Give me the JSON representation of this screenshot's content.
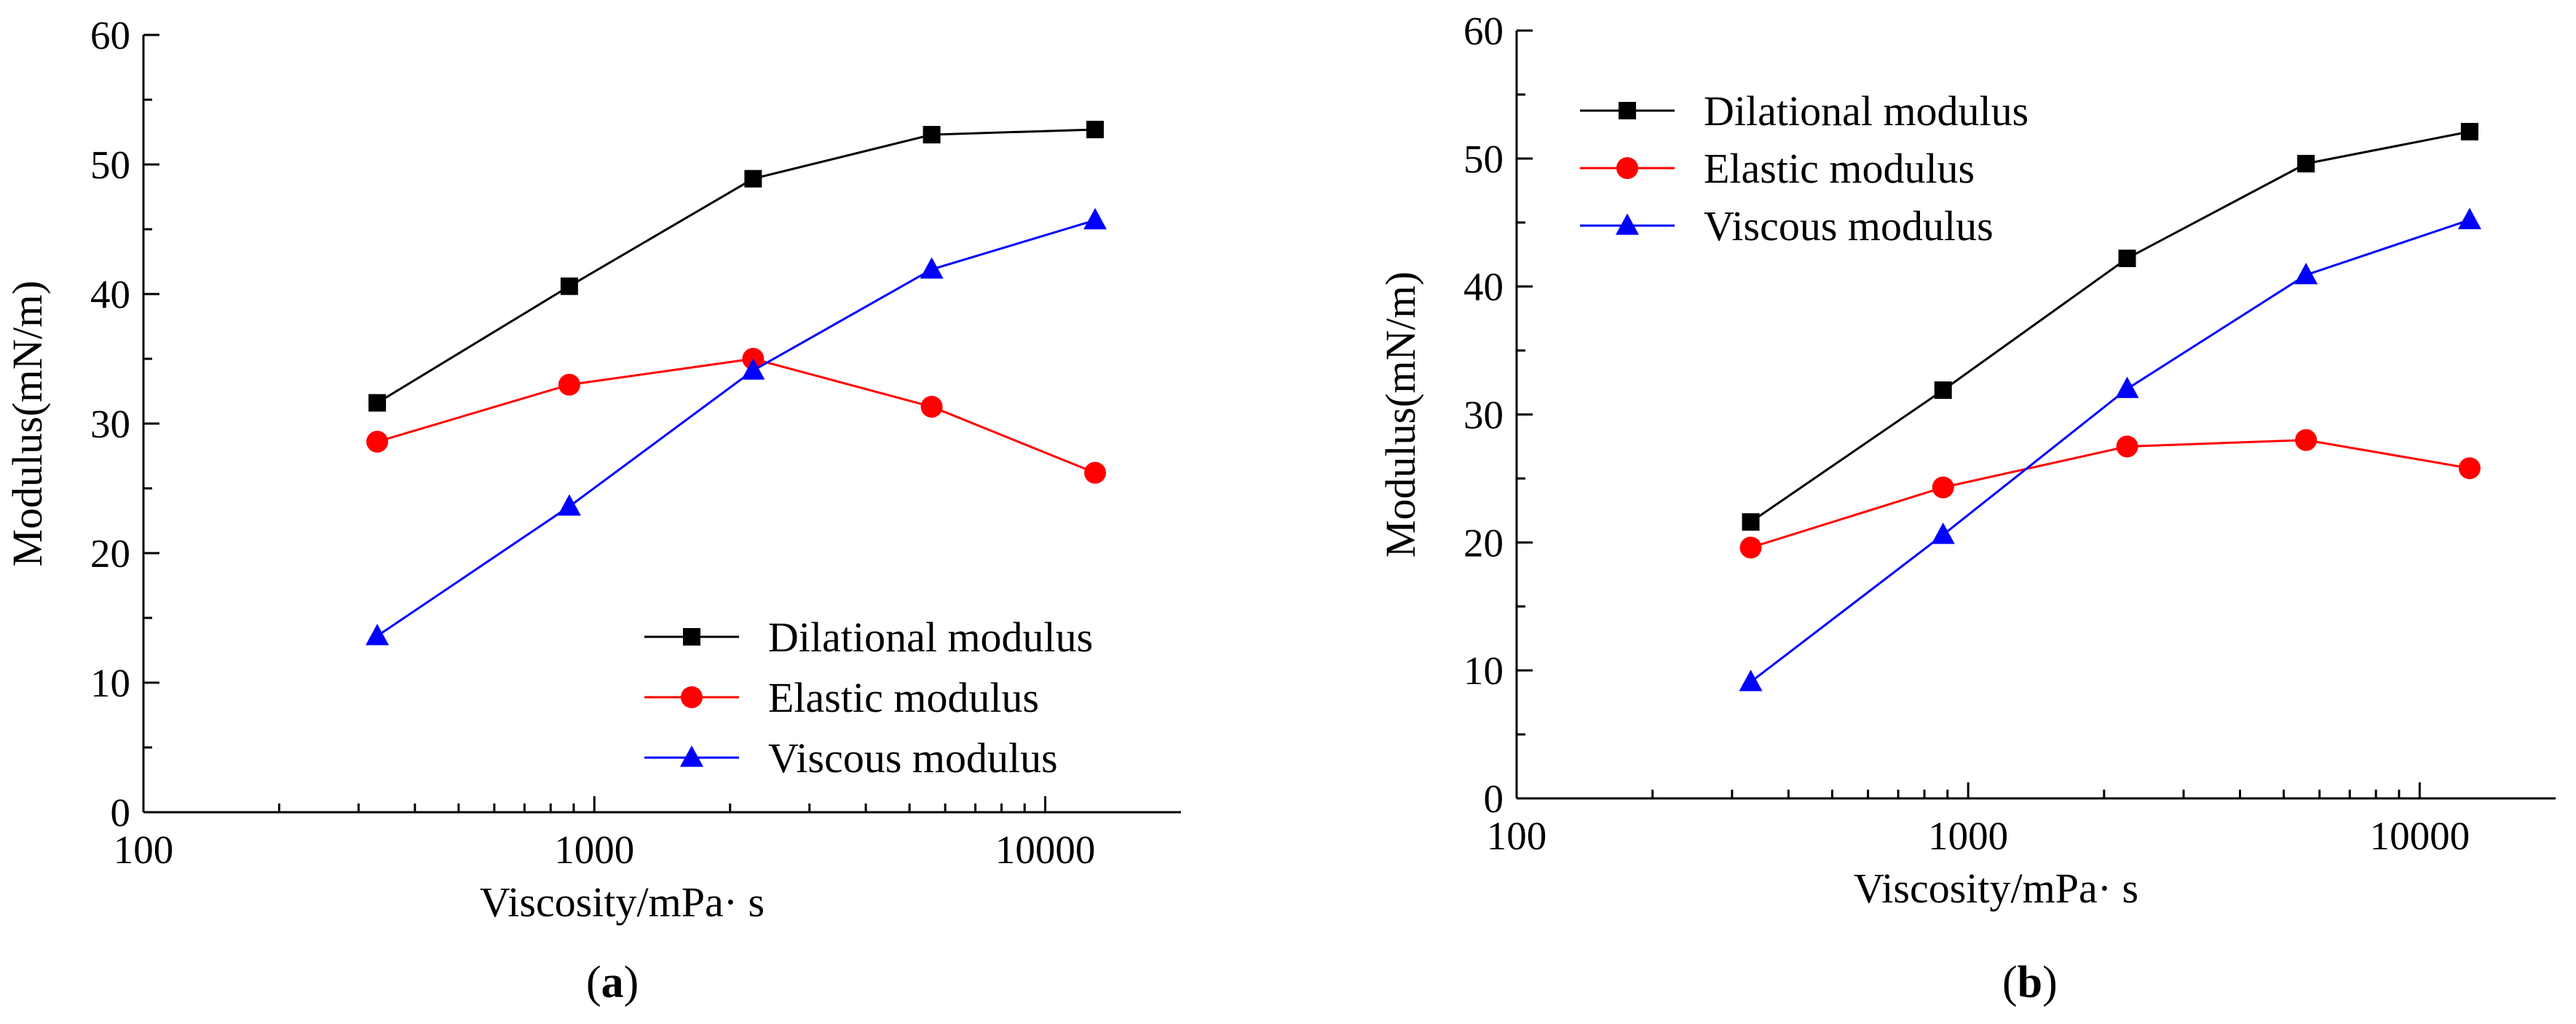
{
  "chart_data": [
    {
      "type": "line",
      "panel_label": "a",
      "xlabel": "Viscosity/mPa· s",
      "ylabel": "Modulus(mN/m)",
      "xscale": "log",
      "xlim": [
        100,
        20000
      ],
      "ylim": [
        0,
        60
      ],
      "xticks": [
        100,
        1000,
        10000
      ],
      "xtick_labels": [
        "100",
        "1000",
        "10000"
      ],
      "yticks": [
        0,
        10,
        20,
        30,
        40,
        50,
        60
      ],
      "ytick_labels": [
        "0",
        "10",
        "20",
        "30",
        "40",
        "50",
        "60"
      ],
      "legend_position": "bottom-right",
      "x": [
        330,
        880,
        2250,
        5600,
        12900
      ],
      "series": [
        {
          "name": "Dilational modulus",
          "color": "#000000",
          "marker": "square",
          "values": [
            31.6,
            40.6,
            48.9,
            52.3,
            52.7
          ]
        },
        {
          "name": "Elastic modulus",
          "color": "#ff0000",
          "marker": "circle",
          "values": [
            28.6,
            33.0,
            35.0,
            31.3,
            26.2
          ]
        },
        {
          "name": "Viscous modulus",
          "color": "#0000ff",
          "marker": "triangle",
          "values": [
            13.6,
            23.6,
            34.1,
            41.9,
            45.7
          ]
        }
      ]
    },
    {
      "type": "line",
      "panel_label": "b",
      "xlabel": "Viscosity/mPa· s",
      "ylabel": "Modulus(mN/m)",
      "xscale": "log",
      "xlim": [
        100,
        20000
      ],
      "ylim": [
        0,
        60
      ],
      "xticks": [
        100,
        1000,
        10000
      ],
      "xtick_labels": [
        "100",
        "1000",
        "10000"
      ],
      "yticks": [
        0,
        10,
        20,
        30,
        40,
        50,
        60
      ],
      "ytick_labels": [
        "0",
        "10",
        "20",
        "30",
        "40",
        "50",
        "60"
      ],
      "legend_position": "top-left",
      "x": [
        330,
        880,
        2250,
        5600,
        12900
      ],
      "series": [
        {
          "name": "Dilational modulus",
          "color": "#000000",
          "marker": "square",
          "values": [
            21.6,
            31.9,
            42.2,
            49.6,
            52.1
          ]
        },
        {
          "name": "Elastic modulus",
          "color": "#ff0000",
          "marker": "circle",
          "values": [
            19.6,
            24.3,
            27.5,
            28.0,
            25.8
          ]
        },
        {
          "name": "Viscous modulus",
          "color": "#0000ff",
          "marker": "triangle",
          "values": [
            9.1,
            20.6,
            32.0,
            40.9,
            45.2
          ]
        }
      ]
    }
  ]
}
